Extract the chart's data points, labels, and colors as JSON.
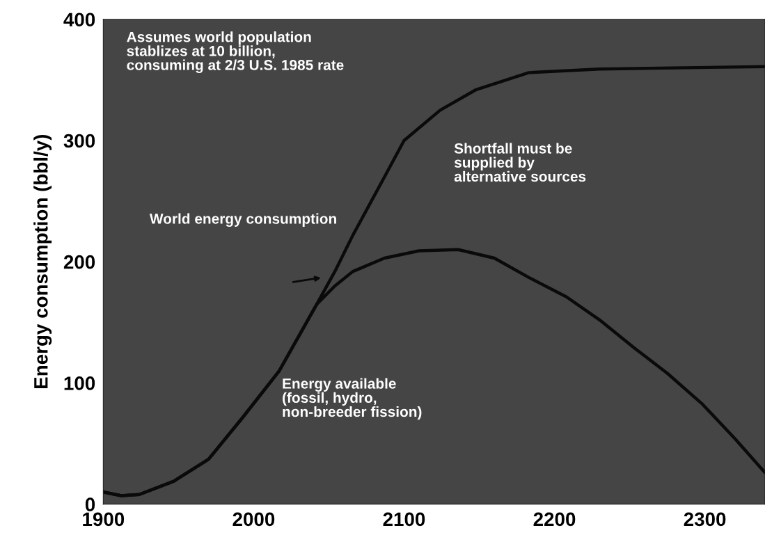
{
  "chart_data": {
    "type": "line",
    "ylabel": "Energy consumption (bbl/y)",
    "xlim": [
      1900,
      2340
    ],
    "ylim": [
      0,
      400
    ],
    "xticks": [
      1900,
      2000,
      2100,
      2200,
      2300
    ],
    "yticks": [
      0,
      100,
      200,
      300,
      400
    ],
    "grid": false,
    "legend": false,
    "marker": "none",
    "line_style": "solid",
    "series": [
      {
        "name": "World energy consumption",
        "color": "#0a0a0a",
        "x": [
          1900,
          1912,
          1924,
          1947,
          1970,
          1993,
          2017,
          2042,
          2054,
          2066,
          2087,
          2100,
          2124,
          2148,
          2183,
          2230,
          2340
        ],
        "values": [
          10,
          7,
          8,
          19,
          37,
          72,
          110,
          165,
          192,
          222,
          270,
          300,
          325,
          342,
          356,
          359,
          361
        ]
      },
      {
        "name": "Energy available\n(fossil, hydro,\nnon-breeder fission)",
        "color": "#0a0a0a",
        "x": [
          1900,
          1912,
          1924,
          1947,
          1970,
          1993,
          2017,
          2042,
          2054,
          2066,
          2087,
          2110,
          2136,
          2160,
          2183,
          2208,
          2230,
          2253,
          2275,
          2298,
          2320,
          2340
        ],
        "values": [
          10,
          7,
          8,
          19,
          37,
          72,
          110,
          165,
          180,
          192,
          203,
          209,
          210,
          203,
          187,
          171,
          152,
          129,
          108,
          83,
          54,
          26
        ]
      }
    ],
    "annotations": [
      "Assumes world population\nstablizes at 10 billion,\nconsuming at 2/3 U.S. 1985 rate",
      "Shortfall must be\nsupplied by\nalternative sources"
    ]
  }
}
